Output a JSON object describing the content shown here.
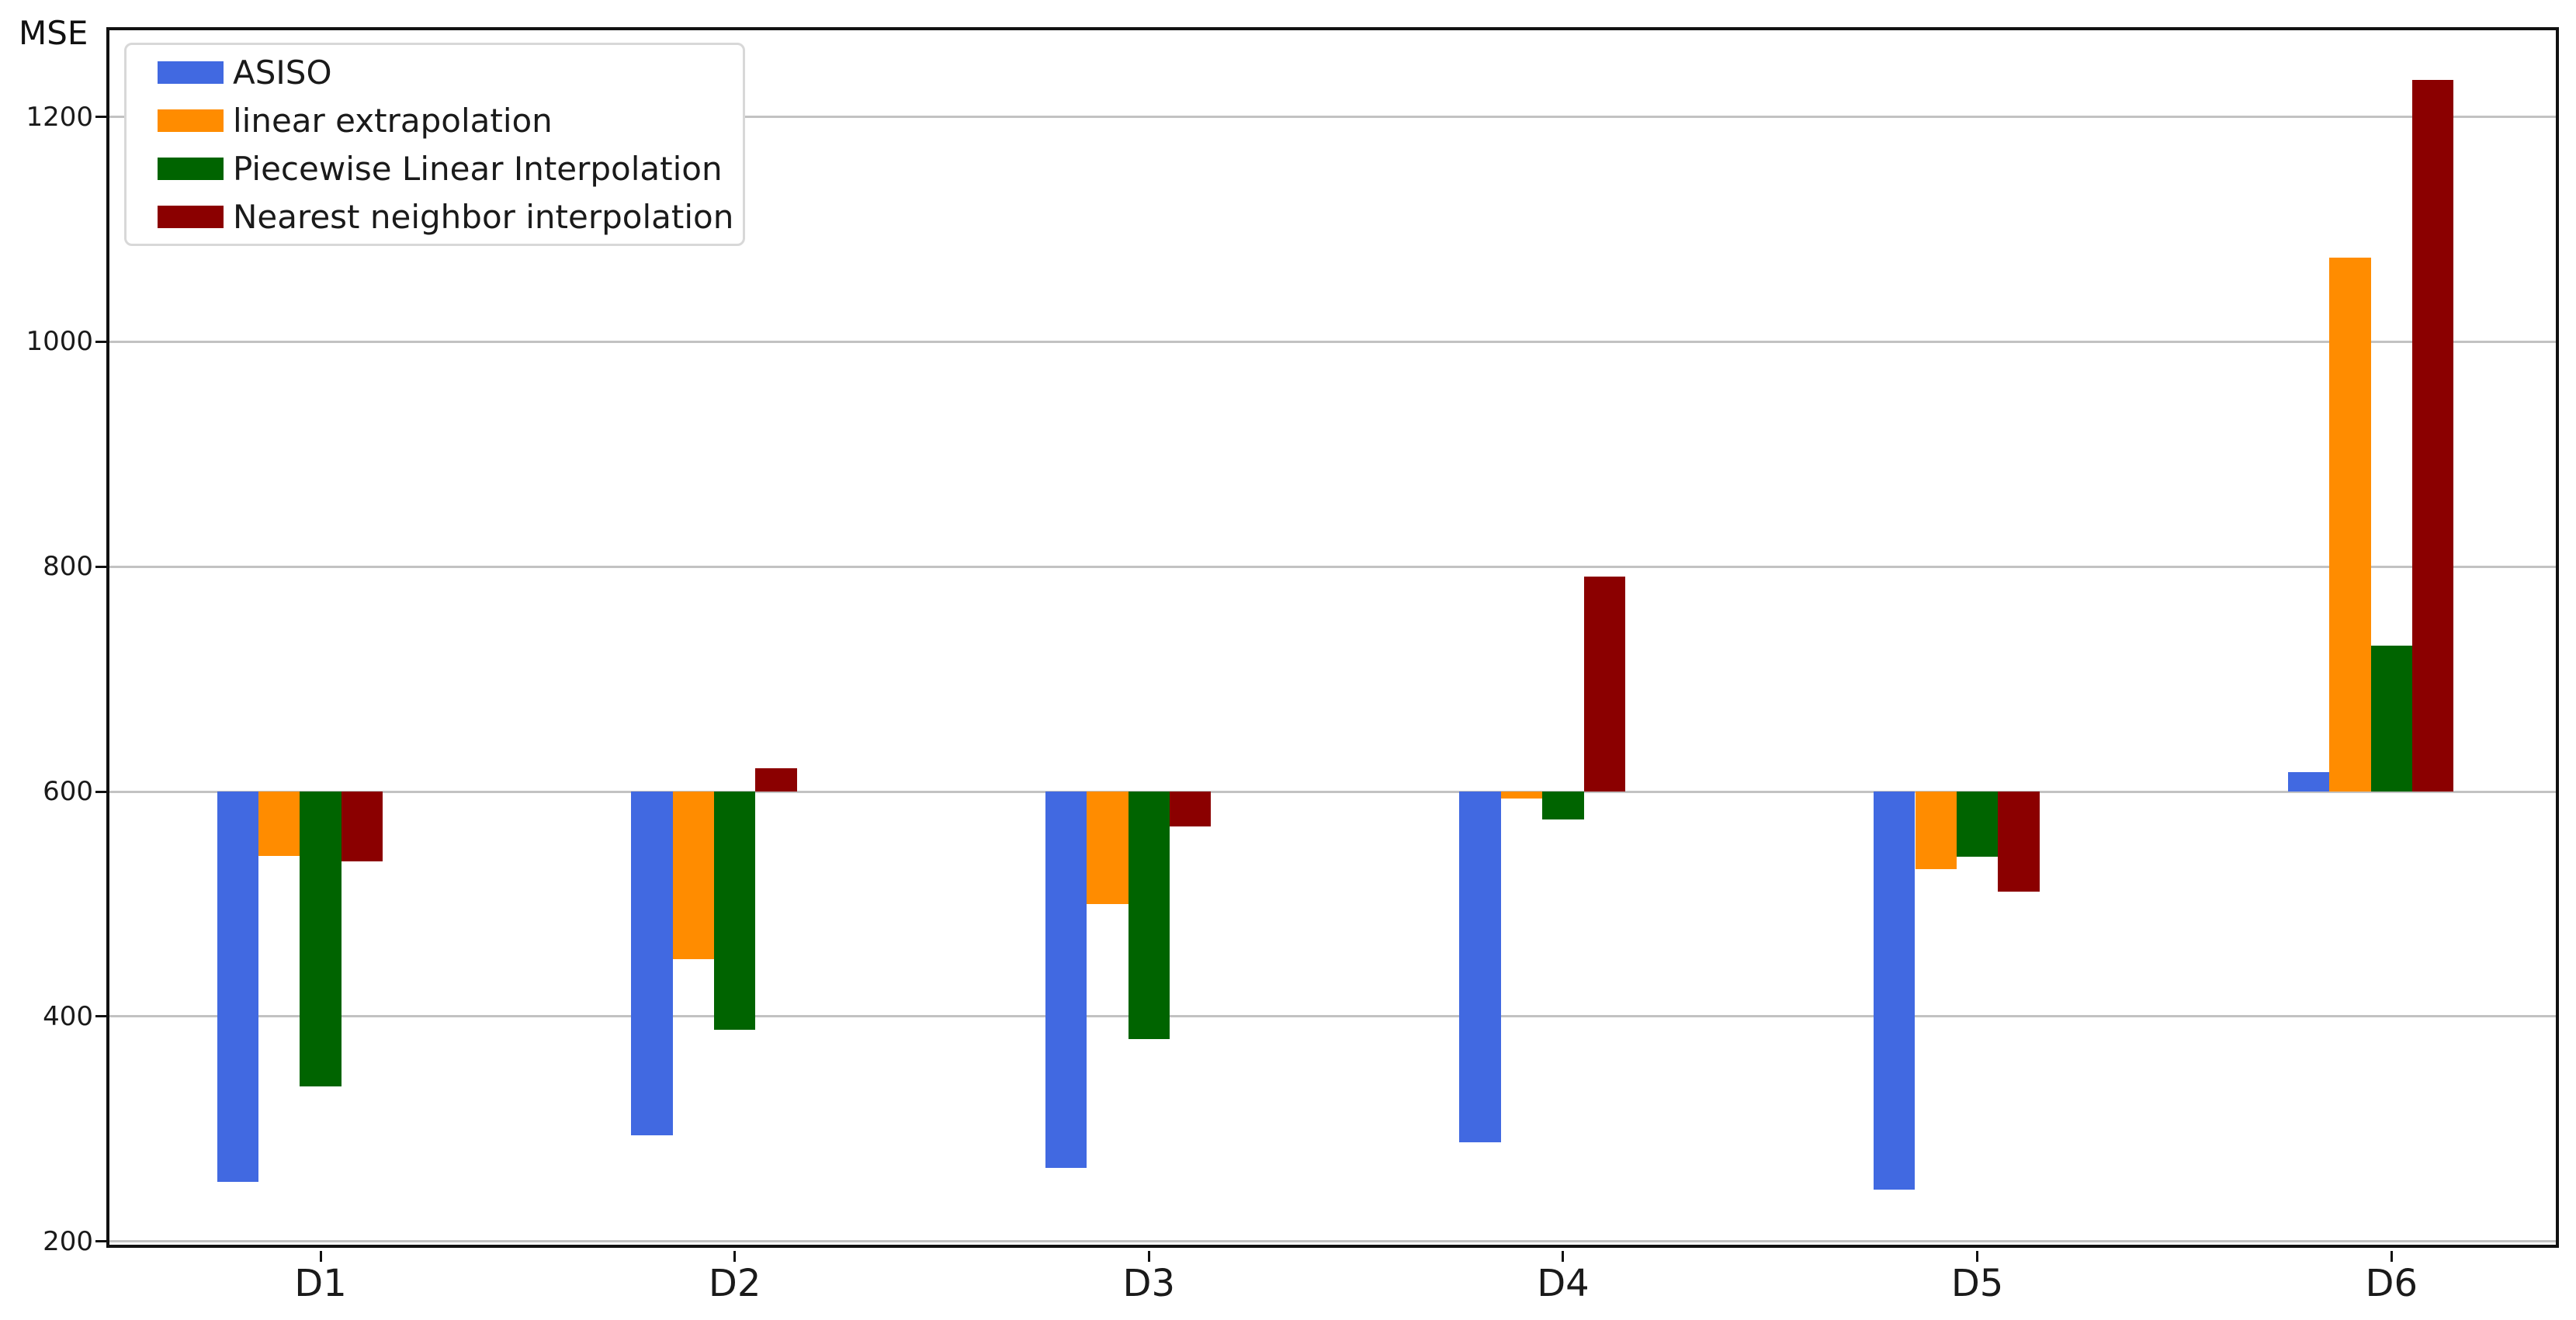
{
  "chart_data": {
    "type": "bar",
    "title": "MSE",
    "xlabel": "",
    "ylabel": "MSE",
    "categories": [
      "D1",
      "D2",
      "D3",
      "D4",
      "D5",
      "D6"
    ],
    "series": [
      {
        "name": "ASISO",
        "color": "#4169E1",
        "values": [
          253,
          294,
          265,
          288,
          246,
          617
        ]
      },
      {
        "name": "linear extrapolation",
        "color": "#FF8C00",
        "values": [
          543,
          451,
          500,
          594,
          531,
          1075
        ]
      },
      {
        "name": "Piecewise Linear Interpolation",
        "color": "#006400",
        "values": [
          338,
          388,
          380,
          575,
          542,
          730
        ]
      },
      {
        "name": "Nearest neighbor interpolation",
        "color": "#8B0000",
        "values": [
          538,
          621,
          569,
          791,
          511,
          1233
        ]
      }
    ],
    "bar_baseline": 600,
    "yticks": [
      200,
      400,
      600,
      800,
      1000,
      1200
    ],
    "ylim": [
      197,
      1277
    ],
    "grid": "horizontal-major",
    "gridline_color": "#c2c2c2",
    "legend_position": "upper-left",
    "background_color": "#ffffff",
    "spine_color": "#111111"
  }
}
